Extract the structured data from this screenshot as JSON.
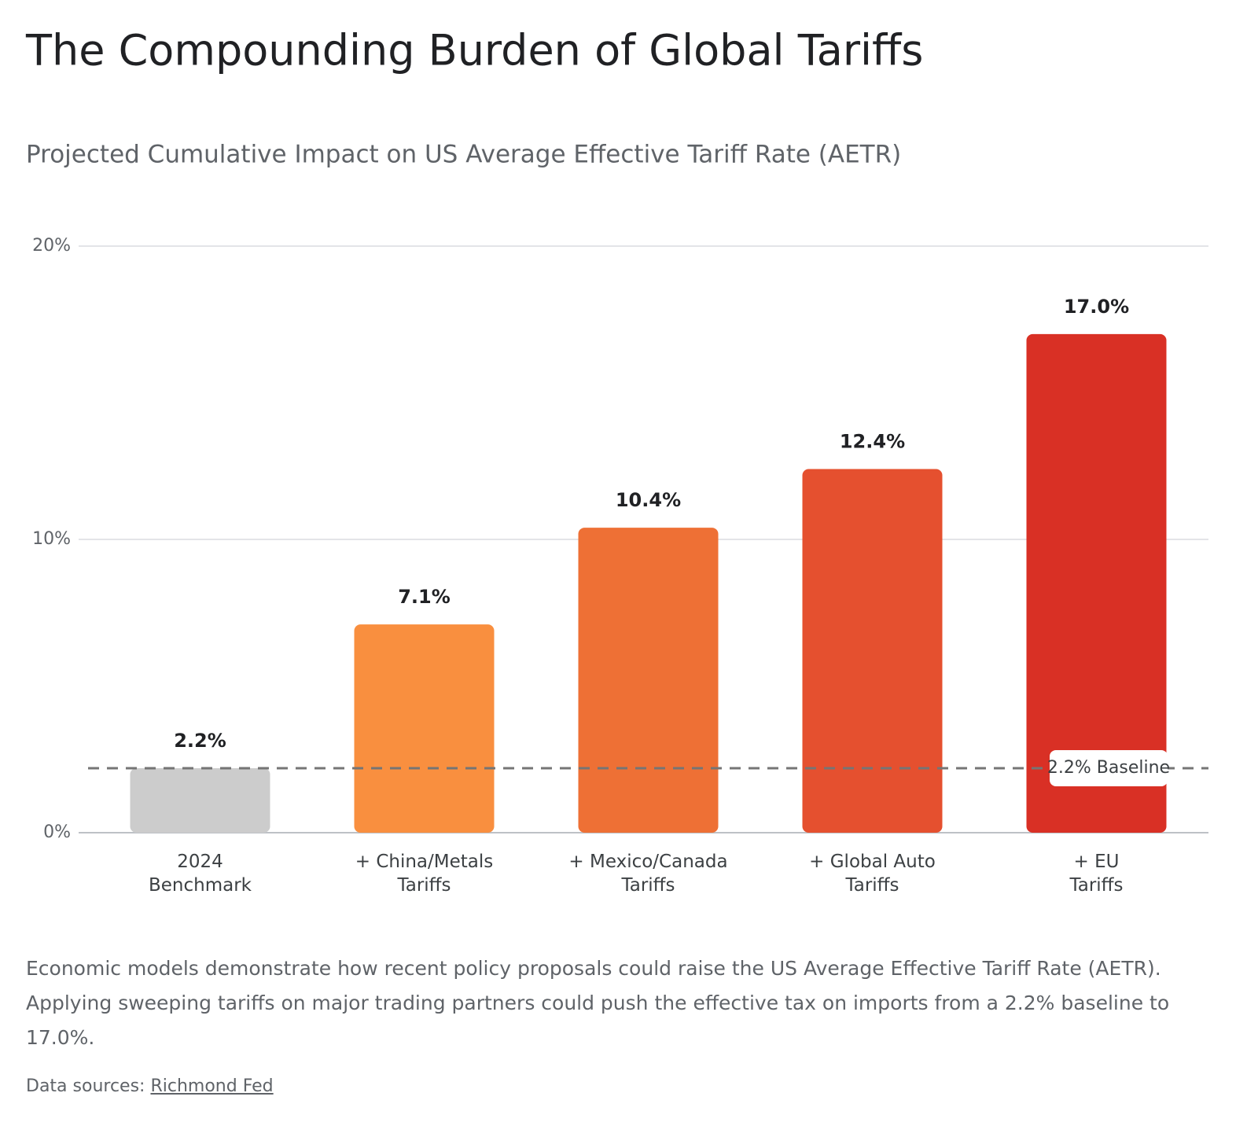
{
  "chart_data": {
    "type": "bar",
    "title": "The Compounding Burden of Global Tariffs",
    "subtitle": "Projected Cumulative Impact on US Average Effective Tariff Rate (AETR)",
    "categories": [
      "2024\nBenchmark",
      "+ China/Metals\nTariffs",
      "+ Mexico/Canada\nTariffs",
      "+ Global Auto\nTariffs",
      "+ EU\nTariffs"
    ],
    "values": [
      2.2,
      7.1,
      10.4,
      12.4,
      17.0
    ],
    "value_labels": [
      "2.2%",
      "7.1%",
      "10.4%",
      "12.4%",
      "17.0%"
    ],
    "colors": [
      "#cccccc",
      "#f98f3f",
      "#ee7035",
      "#e5502f",
      "#d93025"
    ],
    "ylim": [
      0,
      20
    ],
    "yticks": [
      {
        "value": 0,
        "label": "0%"
      },
      {
        "value": 10,
        "label": "10%"
      },
      {
        "value": 20,
        "label": "20%"
      }
    ],
    "grid": true,
    "baseline": {
      "value": 2.2,
      "label": "2.2% Baseline"
    },
    "description": "Economic models demonstrate how recent policy proposals could raise the US Average Effective Tariff Rate (AETR). Applying sweeping tariffs on major trading partners could push the effective tax on imports from a 2.2% baseline to 17.0%.",
    "source_label": "Data sources:",
    "source_link": "Richmond Fed"
  }
}
